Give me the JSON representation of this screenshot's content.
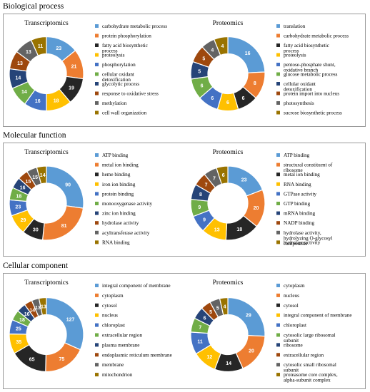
{
  "sections": [
    {
      "title": "Biological process"
    },
    {
      "title": "Molecular function"
    },
    {
      "title": "Cellular component"
    }
  ],
  "palette": [
    "#5b9bd5",
    "#ed7d31",
    "#262626",
    "#ffc000",
    "#4472c4",
    "#70ad47",
    "#264478",
    "#9e480e",
    "#636363",
    "#997300"
  ],
  "chart_data": [
    {
      "type": "pie",
      "variant": "donut",
      "section": "Biological process",
      "title": "Transcriptomics",
      "categories": [
        "carbohydrate metabolic process",
        "protein phosphorylation",
        "fatty acid biosynthetic process",
        "proteolysis",
        "phosphorylation",
        "cellular oxidant detoxification",
        "glycolytic process",
        "response to oxidative stress",
        "methylation",
        "cell wall organization"
      ],
      "values": [
        23,
        21,
        19,
        18,
        16,
        14,
        14,
        13,
        13,
        11
      ],
      "legend": "right"
    },
    {
      "type": "pie",
      "variant": "donut",
      "section": "Biological process",
      "title": "Proteomics",
      "categories": [
        "translation",
        "carbohydrate metabolic process",
        "fatty acid biosynthetic process",
        "proteolysis",
        "pentose-phosphate shunt, oxidative branch",
        "glucose metabolic process",
        "cellular oxidant detoxification",
        "protein import into nucleus",
        "photosynthesis",
        "sucrose biosynthetic process"
      ],
      "values": [
        16,
        8,
        6,
        6,
        6,
        6,
        5,
        5,
        4,
        4
      ],
      "legend": "right"
    },
    {
      "type": "pie",
      "variant": "donut",
      "section": "Molecular function",
      "title": "Transcriptomics",
      "categories": [
        "ATP binding",
        "metal ion binding",
        "heme binding",
        "iron ion binding",
        "protein binding",
        "monooxygenase activity",
        "zinc ion binding",
        "hydrolase activity",
        "acyltransferase activity",
        "RNA binding"
      ],
      "values": [
        90,
        81,
        30,
        29,
        23,
        18,
        16,
        15,
        15,
        14
      ],
      "legend": "right"
    },
    {
      "type": "pie",
      "variant": "donut",
      "section": "Molecular function",
      "title": "Proteomics",
      "categories": [
        "ATP binding",
        "structural constituent of ribosome",
        "metal ion binding",
        "RNA binding",
        "GTPase activity",
        "GTP binding",
        "mRNA binding",
        "NADP binding",
        "hydrolase activity, hydrolyzing O-glycosyl compounds",
        "hydrolase activity"
      ],
      "values": [
        23,
        20,
        18,
        13,
        9,
        9,
        8,
        7,
        7,
        6
      ],
      "legend": "right"
    },
    {
      "type": "pie",
      "variant": "donut",
      "section": "Cellular component",
      "title": "Transcriptomics",
      "categories": [
        "integral component of membrane",
        "cytoplasm",
        "cytosol",
        "nucleus",
        "chloroplast",
        "extracellular region",
        "plasma membrane",
        "endoplasmic reticulum membrane",
        "membrane",
        "mitochondrion"
      ],
      "values": [
        127,
        75,
        65,
        35,
        25,
        18,
        16,
        14,
        13,
        13
      ],
      "legend": "right"
    },
    {
      "type": "pie",
      "variant": "donut",
      "section": "Cellular component",
      "title": "Proteomics",
      "categories": [
        "cytoplasm",
        "nucleus",
        "cytosol",
        "integral component of membrane",
        "chloroplast",
        "cytosolic large ribosomal subunit",
        "ribosome",
        "extracellular region",
        "cytosolic small ribosomal subunit",
        "proteasome core complex, alpha-subunit complex"
      ],
      "values": [
        29,
        20,
        14,
        12,
        11,
        7,
        6,
        5,
        5,
        4
      ],
      "legend": "right"
    }
  ]
}
